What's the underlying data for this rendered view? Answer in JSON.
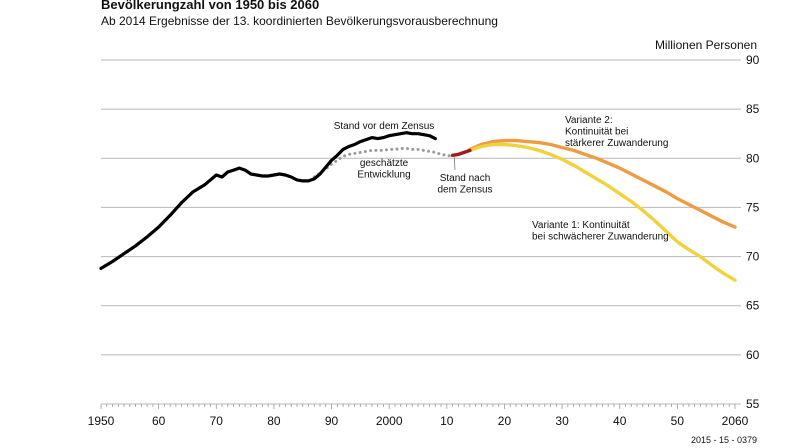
{
  "chart_data": {
    "type": "line",
    "title": "Bevölkerungzahl von 1950 bis 2060",
    "subtitle": "Ab 2014 Ergebnisse der 13. koordinierten Bevölkerungsvorausberechnung",
    "ylabel": "Millionen Personen",
    "source": "2015 - 15 - 0379",
    "xlim": [
      1950,
      2060
    ],
    "ylim": [
      55,
      90
    ],
    "x_ticks": [
      {
        "value": 1950,
        "label": "1950"
      },
      {
        "value": 1960,
        "label": "60"
      },
      {
        "value": 1970,
        "label": "70"
      },
      {
        "value": 1980,
        "label": "80"
      },
      {
        "value": 1990,
        "label": "90"
      },
      {
        "value": 2000,
        "label": "2000"
      },
      {
        "value": 2010,
        "label": "10"
      },
      {
        "value": 2020,
        "label": "20"
      },
      {
        "value": 2030,
        "label": "30"
      },
      {
        "value": 2040,
        "label": "40"
      },
      {
        "value": 2050,
        "label": "50"
      },
      {
        "value": 2060,
        "label": "2060"
      }
    ],
    "y_ticks": [
      {
        "value": 90,
        "label": "90"
      },
      {
        "value": 85,
        "label": "85"
      },
      {
        "value": 80,
        "label": "80"
      },
      {
        "value": 75,
        "label": "75"
      },
      {
        "value": 70,
        "label": "70"
      },
      {
        "value": 65,
        "label": "65"
      },
      {
        "value": 60,
        "label": "60"
      },
      {
        "value": 55,
        "label": "55"
      }
    ],
    "series": [
      {
        "name": "Stand vor dem Zensus",
        "color": "#000000",
        "style": "solid",
        "x": [
          1950,
          1952,
          1954,
          1956,
          1958,
          1960,
          1962,
          1964,
          1966,
          1968,
          1970,
          1971,
          1972,
          1973,
          1974,
          1975,
          1976,
          1977,
          1978,
          1979,
          1980,
          1981,
          1982,
          1983,
          1984,
          1985,
          1986,
          1987,
          1988,
          1989,
          1990,
          1991,
          1992,
          1993,
          1994,
          1995,
          1996,
          1997,
          1998,
          1999,
          2000,
          2001,
          2002,
          2003,
          2004,
          2005,
          2006,
          2007,
          2008
        ],
        "y": [
          68.8,
          69.5,
          70.3,
          71.1,
          72.0,
          73.0,
          74.2,
          75.5,
          76.6,
          77.3,
          78.3,
          78.1,
          78.6,
          78.8,
          79.0,
          78.8,
          78.4,
          78.3,
          78.2,
          78.2,
          78.3,
          78.4,
          78.3,
          78.1,
          77.8,
          77.7,
          77.7,
          77.9,
          78.4,
          79.1,
          79.8,
          80.3,
          80.9,
          81.2,
          81.4,
          81.7,
          81.9,
          82.1,
          82.0,
          82.1,
          82.3,
          82.4,
          82.5,
          82.6,
          82.5,
          82.5,
          82.4,
          82.3,
          82.0
        ]
      },
      {
        "name": "geschätzte Entwicklung",
        "color": "#9b9b9b",
        "style": "dotted",
        "x": [
          1987,
          1988,
          1989,
          1990,
          1991,
          1992,
          1993,
          1994,
          1995,
          1996,
          1997,
          1998,
          1999,
          2000,
          2001,
          2002,
          2003,
          2004,
          2005,
          2006,
          2007,
          2008,
          2009,
          2010,
          2011
        ],
        "y": [
          78.1,
          78.5,
          78.9,
          79.4,
          79.8,
          80.2,
          80.4,
          80.5,
          80.6,
          80.7,
          80.8,
          80.8,
          80.8,
          80.9,
          80.9,
          81.0,
          81.0,
          80.9,
          80.9,
          80.8,
          80.7,
          80.6,
          80.4,
          80.3,
          80.2
        ]
      },
      {
        "name": "Stand nach dem Zensus",
        "color": "#9e1b1b",
        "style": "solid",
        "x": [
          2011,
          2012,
          2013,
          2014
        ],
        "y": [
          80.3,
          80.4,
          80.6,
          80.8
        ]
      },
      {
        "name": "Variante 1: Kontinuität bei schwächerer Zuwanderung",
        "color": "#f2d23c",
        "style": "solid",
        "x": [
          2014,
          2016,
          2018,
          2020,
          2022,
          2024,
          2026,
          2028,
          2030,
          2032,
          2034,
          2036,
          2038,
          2040,
          2042,
          2044,
          2046,
          2048,
          2050,
          2052,
          2054,
          2056,
          2058,
          2060
        ],
        "y": [
          80.8,
          81.2,
          81.4,
          81.4,
          81.3,
          81.1,
          80.8,
          80.4,
          79.9,
          79.3,
          78.6,
          77.9,
          77.2,
          76.4,
          75.6,
          74.7,
          73.7,
          72.6,
          71.5,
          70.7,
          70.0,
          69.1,
          68.3,
          67.6
        ]
      },
      {
        "name": "Variante 2: Kontinuität bei stärkerer Zuwanderung",
        "color": "#ee9c43",
        "style": "solid",
        "x": [
          2014,
          2016,
          2018,
          2020,
          2022,
          2024,
          2026,
          2028,
          2030,
          2032,
          2034,
          2036,
          2038,
          2040,
          2042,
          2044,
          2046,
          2048,
          2050,
          2052,
          2054,
          2056,
          2058,
          2060
        ],
        "y": [
          80.9,
          81.4,
          81.7,
          81.8,
          81.8,
          81.7,
          81.6,
          81.4,
          81.1,
          80.8,
          80.4,
          80.0,
          79.5,
          79.0,
          78.4,
          77.8,
          77.2,
          76.6,
          75.9,
          75.3,
          74.7,
          74.1,
          73.5,
          73.0
        ]
      }
    ],
    "annotations": [
      {
        "id": "stand-vor",
        "lines": [
          "Stand vor dem Zensus"
        ]
      },
      {
        "id": "geschaetzt",
        "lines": [
          "geschätzte",
          "Entwicklung"
        ]
      },
      {
        "id": "stand-nach",
        "lines": [
          "Stand nach",
          "dem Zensus"
        ]
      },
      {
        "id": "variante2",
        "lines": [
          "Variante 2:",
          "Kontinuität bei",
          "stärkerer Zuwanderung"
        ]
      },
      {
        "id": "variante1",
        "lines": [
          "Variante 1: Kontinuität",
          "bei schwächerer Zuwanderung"
        ]
      }
    ]
  }
}
